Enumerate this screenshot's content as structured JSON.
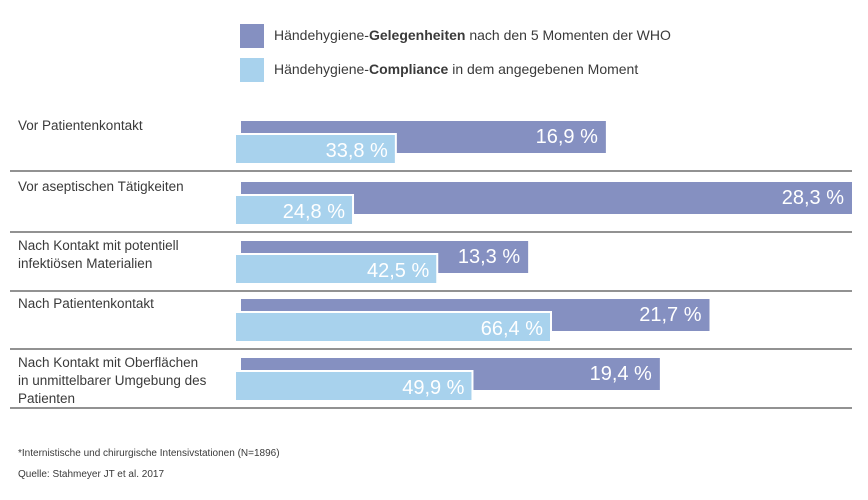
{
  "colors": {
    "opportunities": "#8590c1",
    "compliance": "#a8d2ed",
    "divider": "#6e6e6e",
    "text": "#3a3a3a",
    "bar_text": "#ffffff"
  },
  "legend": [
    {
      "prefix": "Händehygiene-",
      "bold": "Gelegenheiten",
      "suffix": " nach den 5 Momenten der WHO",
      "color": "#8590c1"
    },
    {
      "prefix": "Händehygiene-",
      "bold": "Compliance",
      "suffix": " in dem angegebenen Moment",
      "color": "#a8d2ed"
    }
  ],
  "chart_data": {
    "type": "bar",
    "orientation": "horizontal",
    "categories": [
      "Vor Patientenkontakt",
      "Vor aseptischen Tätigkeiten",
      "Nach Kontakt mit potentiell infektiösen Materialien",
      "Nach Patientenkontakt",
      "Nach Kontakt mit Oberflächen in unmittelbarer Umgebung des Patienten"
    ],
    "category_lines": [
      [
        "Vor Patientenkontakt"
      ],
      [
        "Vor aseptischen Tätigkeiten"
      ],
      [
        "Nach Kontakt mit potentiell",
        "infektiösen Materialien"
      ],
      [
        "Nach Patientenkontakt"
      ],
      [
        "Nach Kontakt mit Oberflächen",
        "in unmittelbarer Umgebung des",
        "Patienten"
      ]
    ],
    "series": [
      {
        "name": "Händehygiene-Gelegenheiten nach den 5 Momenten der WHO",
        "values": [
          16.9,
          28.3,
          13.3,
          21.7,
          19.4
        ],
        "labels": [
          "16,9 %",
          "28,3 %",
          "13,3 %",
          "21,7 %",
          "19,4 %"
        ]
      },
      {
        "name": "Händehygiene-Compliance in dem angegebenen Moment",
        "values": [
          33.8,
          24.8,
          42.5,
          66.4,
          49.9
        ],
        "labels": [
          "33,8 %",
          "24,8 %",
          "42,5 %",
          "66,4 %",
          "49,9 %"
        ]
      }
    ],
    "scales": {
      "opportunities_max": 28.3,
      "compliance_max": 66.4
    }
  },
  "footnotes": {
    "note": "*Internistische und chirurgische Intensivstationen (N=1896)",
    "source": "Quelle: Stahmeyer JT et al. 2017"
  }
}
